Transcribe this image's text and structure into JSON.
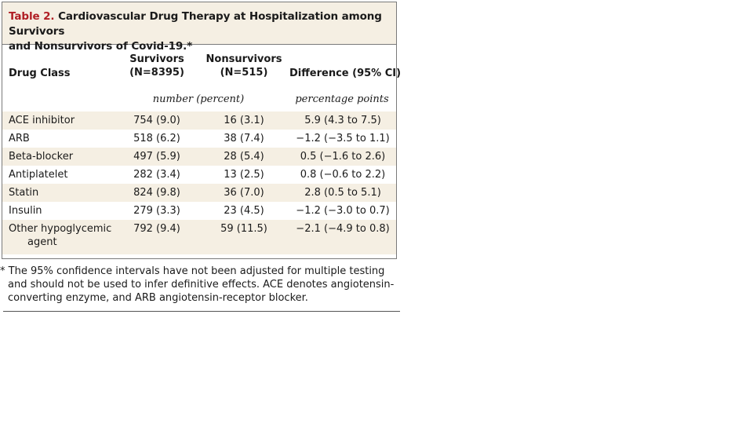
{
  "table": {
    "label": "Table 2.",
    "title_line1": "Cardiovascular Drug Therapy at Hospitalization among Survivors",
    "title_line2": "and Nonsurvivors of Covid-19.*",
    "headers": {
      "drug_class": "Drug Class",
      "survivors_line1": "Survivors",
      "survivors_line2": "(N=8395)",
      "nonsurvivors_line1": "Nonsurvivors",
      "nonsurvivors_line2": "(N=515)",
      "difference": "Difference (95% CI)"
    },
    "subheaders": {
      "counts": "number (percent)",
      "difference": "percentage points"
    },
    "rows": [
      {
        "drug": "ACE inhibitor",
        "survivors": "754 (9.0)",
        "nonsurvivors": "16 (3.1)",
        "difference": "5.9 (4.3 to 7.5)"
      },
      {
        "drug": "ARB",
        "survivors": "518 (6.2)",
        "nonsurvivors": "38 (7.4)",
        "difference": "−1.2 (−3.5 to 1.1)"
      },
      {
        "drug": "Beta-blocker",
        "survivors": "497 (5.9)",
        "nonsurvivors": "28 (5.4)",
        "difference": "0.5 (−1.6 to 2.6)"
      },
      {
        "drug": "Antiplatelet",
        "survivors": "282 (3.4)",
        "nonsurvivors": "13 (2.5)",
        "difference": "0.8 (−0.6 to 2.2)"
      },
      {
        "drug": "Statin",
        "survivors": "824 (9.8)",
        "nonsurvivors": "36 (7.0)",
        "difference": "2.8 (0.5 to 5.1)"
      },
      {
        "drug": "Insulin",
        "survivors": "279 (3.3)",
        "nonsurvivors": "23 (4.5)",
        "difference": "−1.2 (−3.0 to 0.7)"
      },
      {
        "drug": "Other hypoglycemic",
        "drug_line2": "agent",
        "survivors": "792 (9.4)",
        "nonsurvivors": "59 (11.5)",
        "difference": "−2.1 (−4.9 to 0.8)"
      }
    ],
    "footnote_line1": "* The 95% confidence intervals have not been adjusted for multiple testing",
    "footnote_line2": "and should not be used to infer definitive effects. ACE denotes angiotensin-",
    "footnote_line3": "converting enzyme, and ARB angiotensin-receptor blocker."
  },
  "colors": {
    "accent": "#b01e24",
    "band": "#f5efe3",
    "border": "#7a7a7a"
  }
}
